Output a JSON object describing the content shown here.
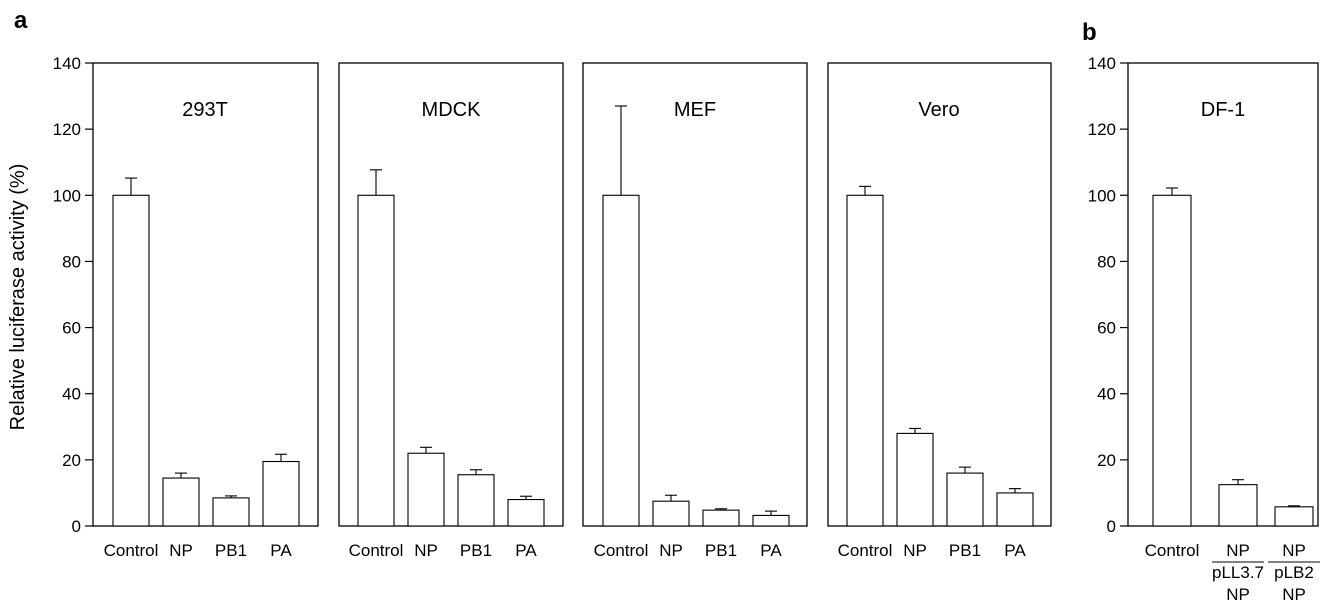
{
  "figure": {
    "ylabel": "Relative luciferase activity (%)",
    "yticks": [
      "0",
      "20",
      "40",
      "60",
      "80",
      "100",
      "120",
      "140"
    ]
  },
  "chart_data": [
    {
      "type": "bar",
      "panel_label": "a",
      "title": "293T",
      "categories": [
        "Control",
        "NP",
        "PB1",
        "PA"
      ],
      "values": [
        100,
        14.5,
        8.5,
        19.5
      ],
      "errors": [
        5.2,
        1.5,
        0.6,
        2.2
      ],
      "ylabel": "Relative luciferase activity (%)",
      "ylim": [
        0,
        140
      ],
      "grid": false
    },
    {
      "type": "bar",
      "title": "MDCK",
      "categories": [
        "Control",
        "NP",
        "PB1",
        "PA"
      ],
      "values": [
        100,
        22,
        15.5,
        8
      ],
      "errors": [
        7.7,
        1.8,
        1.5,
        1
      ],
      "ylim": [
        0,
        140
      ],
      "grid": false
    },
    {
      "type": "bar",
      "title": "MEF",
      "categories": [
        "Control",
        "NP",
        "PB1",
        "PA"
      ],
      "values": [
        100,
        7.5,
        4.8,
        3.2
      ],
      "errors": [
        27,
        1.8,
        0.4,
        1.3
      ],
      "ylim": [
        0,
        140
      ],
      "grid": false
    },
    {
      "type": "bar",
      "title": "Vero",
      "categories": [
        "Control",
        "NP",
        "PB1",
        "PA"
      ],
      "values": [
        100,
        28,
        16,
        10
      ],
      "errors": [
        2.7,
        1.5,
        1.8,
        1.3
      ],
      "ylim": [
        0,
        140
      ],
      "grid": false
    },
    {
      "type": "bar",
      "panel_label": "b",
      "title": "DF-1",
      "categories": [
        "Control",
        "NP\npLL3.7\nNP",
        "NP\npLB2\nNP"
      ],
      "category_lines": [
        [
          "Control"
        ],
        [
          "NP",
          "pLL3.7",
          "NP"
        ],
        [
          "NP",
          "pLB2",
          "NP"
        ]
      ],
      "values": [
        100,
        12.5,
        5.8
      ],
      "errors": [
        2.2,
        1.5,
        0.3
      ],
      "ylabel": "",
      "ylim": [
        0,
        140
      ],
      "grid": false
    }
  ]
}
